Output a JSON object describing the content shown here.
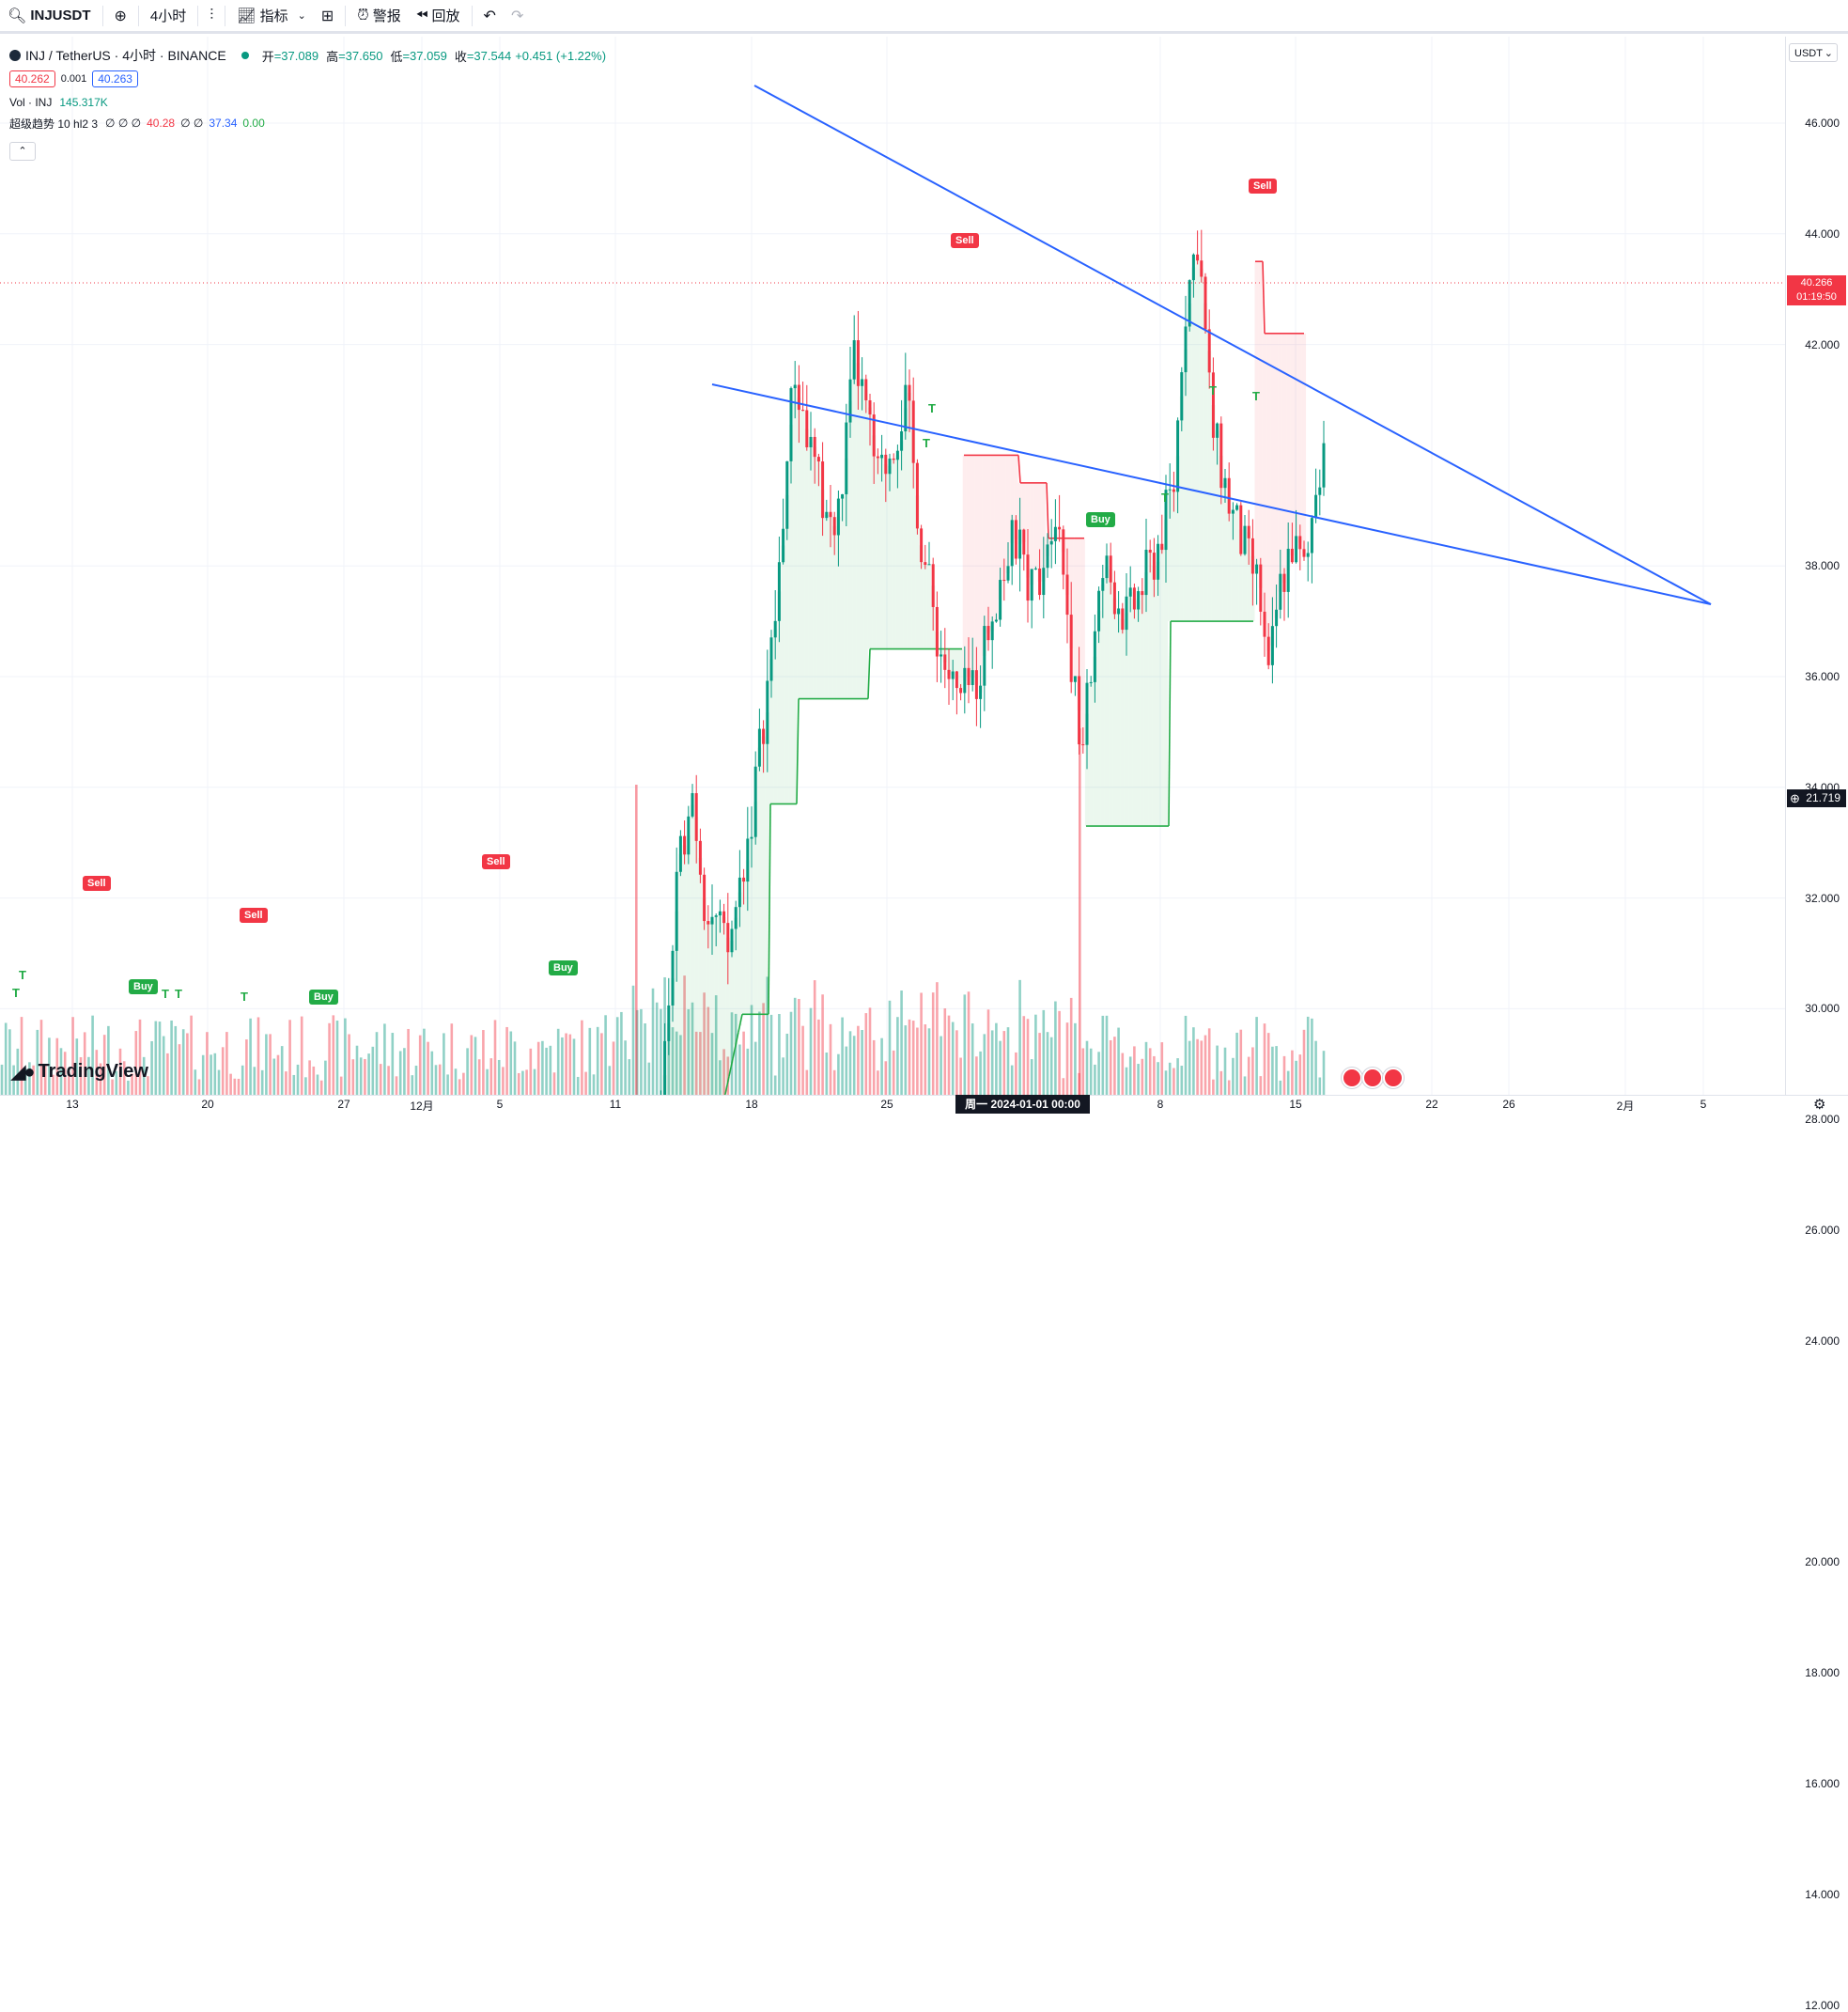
{
  "toolbar": {
    "symbol": "INJUSDT",
    "interval": "4小时",
    "indicators_label": "指标",
    "alerts_label": "警报",
    "replay_label": "回放"
  },
  "legend": {
    "title": "INJ / TetherUS · 4小时 · BINANCE",
    "open_k": "开",
    "open": "=37.089",
    "high_k": "高",
    "high": "=37.650",
    "low_k": "低",
    "low": "=37.059",
    "close_k": "收",
    "close": "=37.544",
    "change": "+0.451 (+1.22%)",
    "bid": "40.262",
    "spread": "0.001",
    "ask": "40.263",
    "vol_label": "Vol · INJ",
    "vol_value": "145.317K",
    "st_label": "超级趋势 10 hl2 3",
    "st_empty": "∅ ∅ ∅",
    "st_v1": "40.28",
    "st_empty2": "∅ ∅",
    "st_v2": "37.34",
    "st_v3": "0.00"
  },
  "price_axis": {
    "currency": "USDT",
    "labels": [
      "46.000",
      "44.000",
      "42.000",
      "38.000",
      "36.000",
      "34.000",
      "32.000",
      "30.000",
      "28.000",
      "26.000",
      "24.000",
      "20.000",
      "18.000",
      "16.000",
      "14.000",
      "12.000"
    ],
    "current_price": "40.266",
    "countdown": "01:19:50",
    "crosshair_price": "21.719"
  },
  "time_axis": {
    "labels": [
      "13",
      "20",
      "27",
      "12月",
      "5",
      "11",
      "18",
      "25",
      "8",
      "15",
      "22",
      "26",
      "2月",
      "5"
    ],
    "crosshair_date": "周一 2024-01-01  00:00"
  },
  "signals": {
    "sell": "Sell",
    "buy": "Buy",
    "t": "T"
  },
  "branding": "TradingView",
  "colors": {
    "up": "#089981",
    "down": "#f23645",
    "trend_up": "#22ab46",
    "trend_down": "#f23645",
    "trendline": "#2962ff"
  }
}
